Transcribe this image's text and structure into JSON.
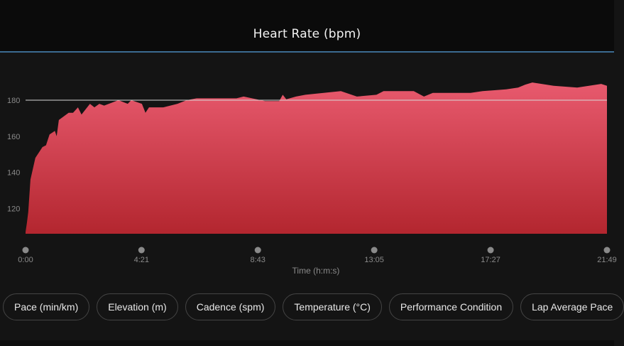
{
  "header": {
    "title": "Heart Rate (bpm)"
  },
  "colors": {
    "fill_top": "#e85a6e",
    "fill_bottom": "#b3262f",
    "header_rule": "#3b6b91",
    "reference_line": "#d8d8d8"
  },
  "chart_data": {
    "type": "area",
    "title": "Heart Rate (bpm)",
    "xlabel": "Time (h:m:s)",
    "ylabel": "",
    "x_unit": "seconds",
    "xlim": [
      0,
      1309
    ],
    "ylim": [
      106,
      204
    ],
    "y_ticks": [
      120,
      140,
      160,
      180
    ],
    "y_tick_labels": [
      "120",
      "140",
      "160",
      "180"
    ],
    "x_ticks": [
      0,
      261,
      523,
      785,
      1047,
      1309
    ],
    "x_tick_labels": [
      "0:00",
      "4:21",
      "8:43",
      "13:05",
      "17:27",
      "21:49"
    ],
    "reference_line": 180,
    "grid": false,
    "x": [
      0,
      3,
      6,
      11,
      22,
      38,
      46,
      54,
      66,
      70,
      75,
      97,
      107,
      118,
      126,
      145,
      155,
      166,
      177,
      209,
      230,
      238,
      262,
      270,
      278,
      310,
      342,
      363,
      385,
      475,
      491,
      539,
      571,
      579,
      587,
      609,
      630,
      710,
      746,
      790,
      806,
      874,
      897,
      917,
      1002,
      1029,
      1082,
      1109,
      1125,
      1141,
      1162,
      1189,
      1242,
      1296,
      1309
    ],
    "values": [
      107,
      112,
      118,
      136,
      148,
      154,
      155,
      161,
      163,
      160,
      169,
      173,
      173,
      176,
      172,
      178,
      176,
      178,
      177,
      180,
      178,
      180,
      178,
      173,
      176,
      176,
      178,
      180,
      181,
      181,
      182,
      179.5,
      179.5,
      183,
      180.5,
      182,
      183,
      185,
      182,
      183,
      185,
      185,
      182,
      184,
      184,
      185,
      186,
      187,
      188.6,
      189.8,
      189,
      188,
      187,
      189,
      188
    ]
  },
  "metric_buttons": [
    "Pace (min/km)",
    "Elevation (m)",
    "Cadence (spm)",
    "Temperature (°C)",
    "Performance Condition",
    "Lap Average Pace"
  ]
}
